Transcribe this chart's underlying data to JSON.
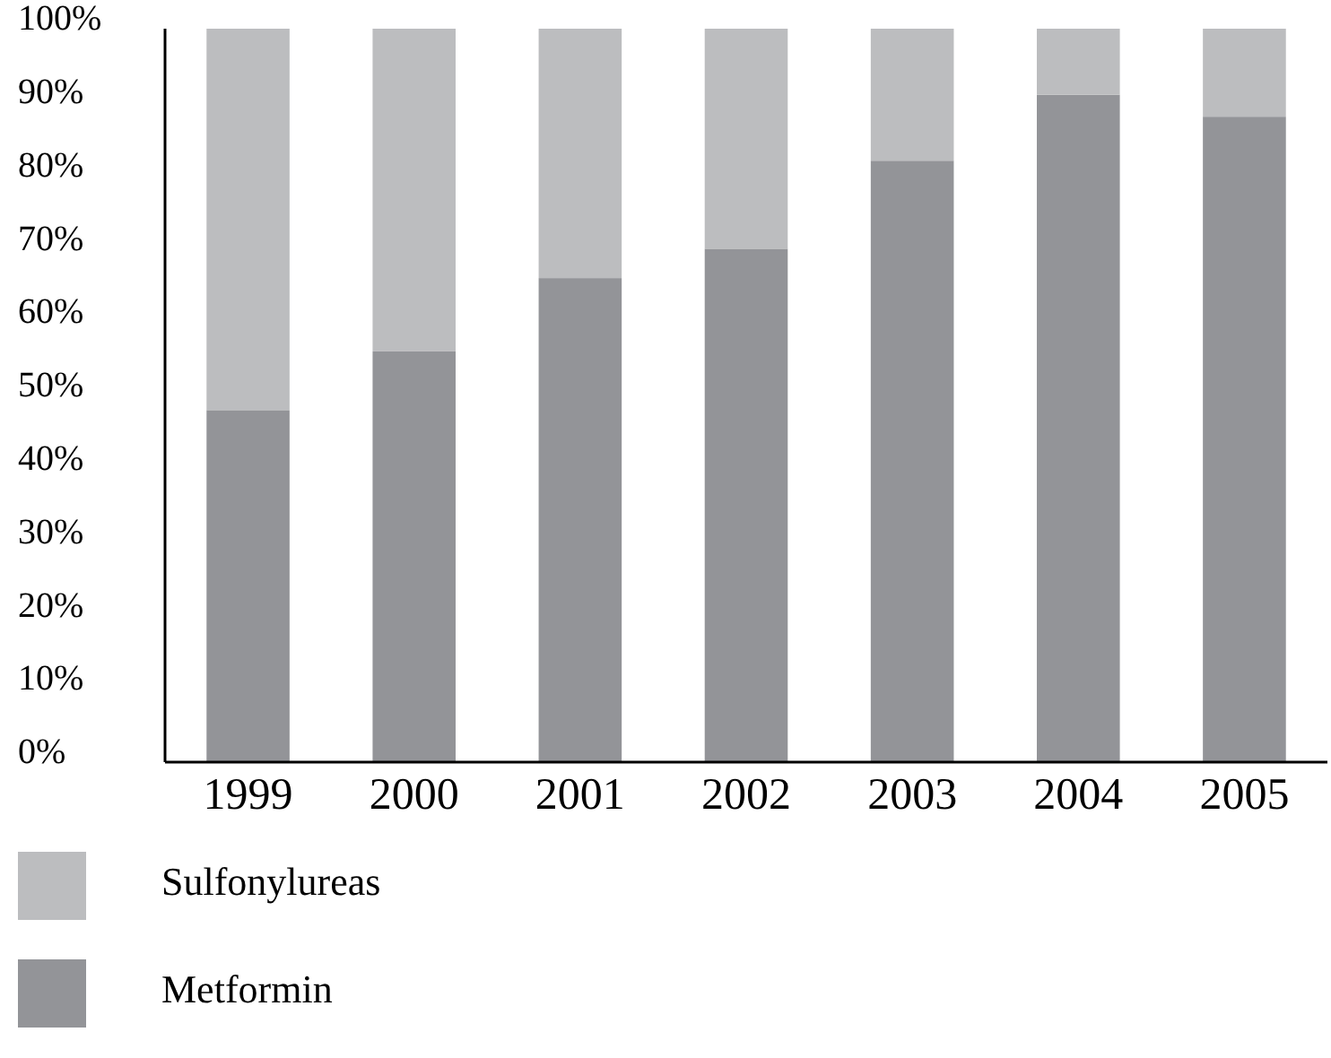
{
  "chart_data": {
    "type": "bar",
    "stacked": true,
    "categories": [
      "1999",
      "2000",
      "2001",
      "2002",
      "2003",
      "2004",
      "2005"
    ],
    "series": [
      {
        "name": "Metformin",
        "color": "#939498",
        "values": [
          48,
          56,
          66,
          70,
          82,
          91,
          88
        ]
      },
      {
        "name": "Sulfonylureas",
        "color": "#bcbdbf",
        "values": [
          52,
          44,
          34,
          30,
          18,
          9,
          12
        ]
      }
    ],
    "ylim": [
      0,
      100
    ],
    "yticks": [
      {
        "value": 0,
        "label": "0%"
      },
      {
        "value": 10,
        "label": "10%"
      },
      {
        "value": 20,
        "label": "20%"
      },
      {
        "value": 30,
        "label": "30%"
      },
      {
        "value": 40,
        "label": "40%"
      },
      {
        "value": 50,
        "label": "50%"
      },
      {
        "value": 60,
        "label": "60%"
      },
      {
        "value": 70,
        "label": "70%"
      },
      {
        "value": 80,
        "label": "80%"
      },
      {
        "value": 90,
        "label": "90%"
      },
      {
        "value": 100,
        "label": "100%"
      }
    ],
    "grid": false,
    "legend": "bottom"
  }
}
